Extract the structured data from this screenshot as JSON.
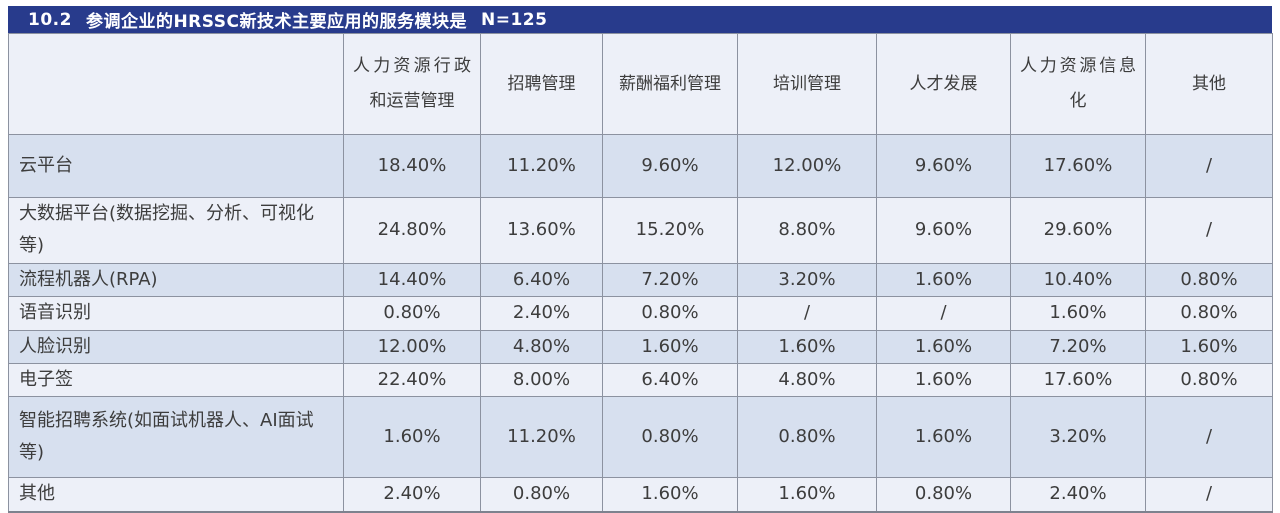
{
  "title": {
    "number": "10.2",
    "text": "参调企业的HRSSC新技术主要应用的服务模块是",
    "count": "N=125"
  },
  "colors": {
    "title_bar_background": "#283b8c",
    "title_text": "#ffffff",
    "row_shaded": "#d7e0ef",
    "row_light": "#edf0f8",
    "grid_border": "#8c92a0",
    "cell_text": "#3d3d3d"
  },
  "chart_data": {
    "type": "table",
    "title": "10.2 参调企业的HRSSC新技术主要应用的服务模块是 N=125",
    "sample_size_label": "N=125",
    "value_unit": "percent of respondents",
    "no_data_marker": "/",
    "columns": [
      "",
      "人力资源行政和运营管理",
      "招聘管理",
      "薪酬福利管理",
      "培训管理",
      "人才发展",
      "人力资源信息化",
      "其他"
    ],
    "rows": [
      {
        "label": "云平台",
        "values": [
          "18.40%",
          "11.20%",
          "9.60%",
          "12.00%",
          "9.60%",
          "17.60%",
          "/"
        ]
      },
      {
        "label": "大数据平台(数据挖掘、分析、可视化等)",
        "values": [
          "24.80%",
          "13.60%",
          "15.20%",
          "8.80%",
          "9.60%",
          "29.60%",
          "/"
        ]
      },
      {
        "label": "流程机器人(RPA)",
        "values": [
          "14.40%",
          "6.40%",
          "7.20%",
          "3.20%",
          "1.60%",
          "10.40%",
          "0.80%"
        ]
      },
      {
        "label": "语音识别",
        "values": [
          "0.80%",
          "2.40%",
          "0.80%",
          "/",
          "/",
          "1.60%",
          "0.80%"
        ]
      },
      {
        "label": "人脸识别",
        "values": [
          "12.00%",
          "4.80%",
          "1.60%",
          "1.60%",
          "1.60%",
          "7.20%",
          "1.60%"
        ]
      },
      {
        "label": "电子签",
        "values": [
          "22.40%",
          "8.00%",
          "6.40%",
          "4.80%",
          "1.60%",
          "17.60%",
          "0.80%"
        ]
      },
      {
        "label": "智能招聘系统(如面试机器人、AI面试等)",
        "values": [
          "1.60%",
          "11.20%",
          "0.80%",
          "0.80%",
          "1.60%",
          "3.20%",
          "/"
        ]
      },
      {
        "label": "其他",
        "values": [
          "2.40%",
          "0.80%",
          "1.60%",
          "1.60%",
          "0.80%",
          "2.40%",
          "/"
        ]
      }
    ]
  }
}
